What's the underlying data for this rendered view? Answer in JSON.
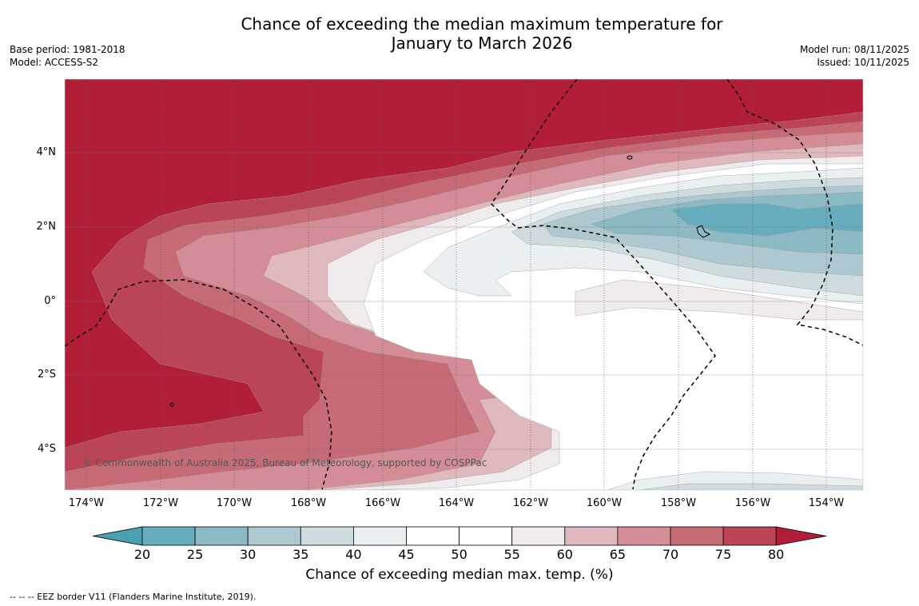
{
  "title": {
    "line1": "Chance of exceeding the median maximum temperature for",
    "line2": "January to March 2026"
  },
  "meta": {
    "base_period": "Base period: 1981-2018",
    "model": "Model: ACCESS-S2",
    "model_run": "Model run: 08/11/2025",
    "issued": "Issued: 10/11/2025"
  },
  "map": {
    "lat_labels": [
      "4°N",
      "2°N",
      "0°",
      "2°S",
      "4°S"
    ],
    "lon_labels": [
      "174°W",
      "172°W",
      "170°W",
      "168°W",
      "166°W",
      "164°W",
      "162°W",
      "160°W",
      "158°W",
      "156°W",
      "154°W"
    ],
    "copyright": "© Commonwealth of Australia 2025, Bureau of Meteorology, supported by COSPPac"
  },
  "colorbar": {
    "ticks": [
      "20",
      "25",
      "30",
      "35",
      "40",
      "45",
      "50",
      "55",
      "60",
      "65",
      "70",
      "75",
      "80"
    ],
    "colors": {
      "below20": "#4ba0b1",
      "c20_25": "#68adbd",
      "c25_30": "#8bb9c4",
      "c30_35": "#adc8cf",
      "c35_40": "#cfdcdf",
      "c40_45": "#eaeff1",
      "c45_55": "#ffffff",
      "c55_60": "#efeceb",
      "c60_65": "#e0b9be",
      "c65_70": "#d48d96",
      "c70_75": "#c66b75",
      "c75_80": "#bb4556",
      "above80": "#b21d38"
    },
    "label": "Chance of exceeding median max. temp. (%)"
  },
  "footer": {
    "legend_line": "-- -- -- EEZ border V11 (Flanders Marine Institute, 2019)."
  }
}
